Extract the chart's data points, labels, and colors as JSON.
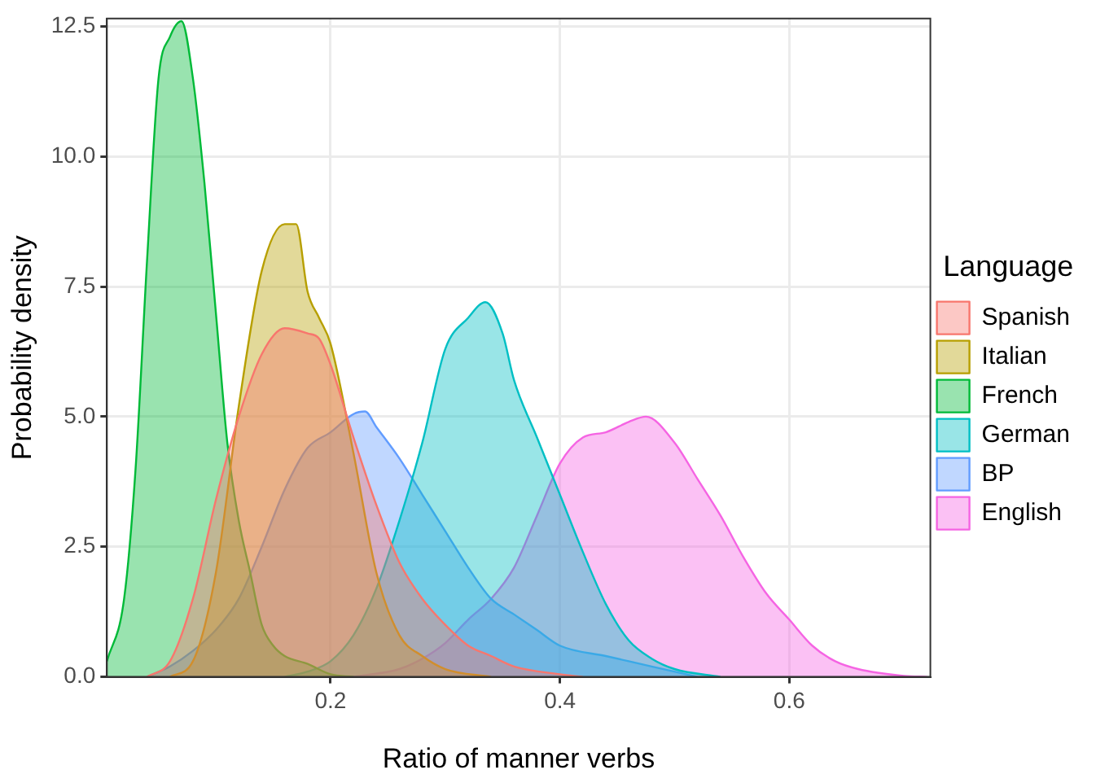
{
  "chart_data": {
    "type": "area",
    "xlabel": "Ratio of manner verbs",
    "ylabel": "Probability density",
    "legend_title": "Language",
    "legend": "right",
    "grid": true,
    "xlim": [
      0.005,
      0.723
    ],
    "xticks": [
      0.2,
      0.4,
      0.6
    ],
    "ylim": [
      0,
      12.65
    ],
    "yticks": [
      {
        "value": 0,
        "label": "0.0"
      },
      {
        "value": 2.5,
        "label": "2.5"
      },
      {
        "value": 5,
        "label": "5.0"
      },
      {
        "value": 7.5,
        "label": "7.5"
      },
      {
        "value": 10,
        "label": "10.0"
      },
      {
        "value": 12.5,
        "label": "12.5"
      }
    ],
    "series": [
      {
        "name": "Spanish",
        "color": "#f8766d",
        "x": [
          0.04,
          0.06,
          0.08,
          0.1,
          0.12,
          0.14,
          0.16,
          0.18,
          0.19,
          0.2,
          0.22,
          0.24,
          0.26,
          0.28,
          0.3,
          0.32,
          0.34,
          0.36,
          0.4,
          0.42
        ],
        "values": [
          0,
          0.3,
          1.5,
          3.4,
          5.0,
          6.2,
          6.7,
          6.6,
          6.5,
          6.0,
          4.6,
          3.3,
          2.2,
          1.5,
          1.0,
          0.6,
          0.4,
          0.2,
          0.05,
          0
        ]
      },
      {
        "name": "Italian",
        "color": "#b79f00",
        "x": [
          0.06,
          0.08,
          0.1,
          0.12,
          0.14,
          0.16,
          0.17,
          0.18,
          0.19,
          0.2,
          0.22,
          0.24,
          0.26,
          0.28,
          0.3,
          0.34
        ],
        "values": [
          0,
          0.3,
          2,
          5.2,
          7.8,
          8.7,
          8.7,
          7.4,
          6.9,
          6.4,
          4.3,
          2.0,
          0.8,
          0.4,
          0.15,
          0
        ]
      },
      {
        "name": "French",
        "color": "#00ba38",
        "x": [
          0.005,
          0.02,
          0.03,
          0.04,
          0.05,
          0.06,
          0.07,
          0.08,
          0.09,
          0.1,
          0.11,
          0.12,
          0.13,
          0.14,
          0.15,
          0.16,
          0.18,
          0.2,
          0.22
        ],
        "values": [
          0.3,
          1.5,
          4,
          8,
          11.5,
          12.3,
          12.6,
          11.5,
          9.5,
          7,
          4.5,
          3,
          2,
          1.0,
          0.6,
          0.4,
          0.25,
          0.05,
          0
        ]
      },
      {
        "name": "German",
        "color": "#00bfc4",
        "x": [
          0.16,
          0.18,
          0.2,
          0.22,
          0.24,
          0.26,
          0.28,
          0.3,
          0.32,
          0.335,
          0.35,
          0.36,
          0.38,
          0.4,
          0.42,
          0.44,
          0.46,
          0.48,
          0.5,
          0.54
        ],
        "values": [
          0,
          0.1,
          0.3,
          0.8,
          1.7,
          3.0,
          4.5,
          6.3,
          6.9,
          7.2,
          6.6,
          5.7,
          4.6,
          3.5,
          2.4,
          1.4,
          0.7,
          0.35,
          0.15,
          0
        ]
      },
      {
        "name": "BP",
        "color": "#619cff",
        "x": [
          0.04,
          0.06,
          0.08,
          0.1,
          0.12,
          0.14,
          0.16,
          0.18,
          0.2,
          0.22,
          0.23,
          0.24,
          0.26,
          0.28,
          0.3,
          0.32,
          0.34,
          0.36,
          0.38,
          0.4,
          0.44,
          0.48,
          0.52
        ],
        "values": [
          0,
          0.2,
          0.5,
          0.9,
          1.5,
          2.5,
          3.6,
          4.4,
          4.7,
          5.05,
          5.1,
          4.8,
          4.2,
          3.5,
          2.8,
          2.1,
          1.5,
          1.2,
          0.9,
          0.6,
          0.4,
          0.2,
          0
        ]
      },
      {
        "name": "English",
        "color": "#f564e3",
        "x": [
          0.22,
          0.26,
          0.28,
          0.3,
          0.32,
          0.34,
          0.36,
          0.38,
          0.4,
          0.42,
          0.44,
          0.46,
          0.475,
          0.5,
          0.52,
          0.54,
          0.56,
          0.58,
          0.6,
          0.62,
          0.64,
          0.66,
          0.7,
          0.72
        ],
        "values": [
          0,
          0.15,
          0.35,
          0.65,
          1.1,
          1.5,
          2.1,
          3.1,
          4.1,
          4.6,
          4.7,
          4.9,
          5.0,
          4.5,
          3.8,
          3.1,
          2.3,
          1.6,
          1.1,
          0.6,
          0.3,
          0.15,
          0.02,
          0
        ]
      }
    ]
  }
}
